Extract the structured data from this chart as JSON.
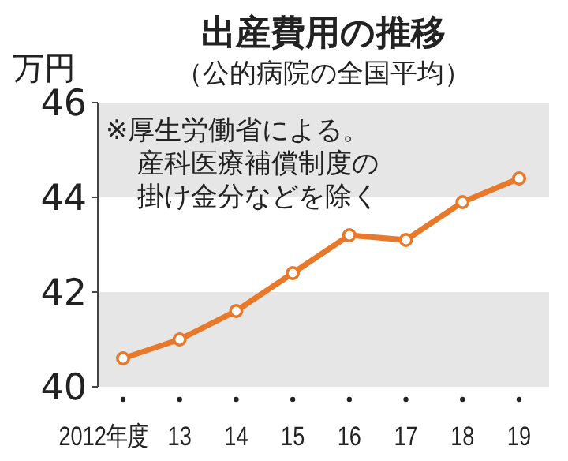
{
  "chart_data": {
    "type": "line",
    "title": "出産費用の推移",
    "subtitle": "（公的病院の全国平均）",
    "ylabel": "万円",
    "categories": [
      "2012年度",
      "13",
      "14",
      "15",
      "16",
      "17",
      "18",
      "19"
    ],
    "series": [
      {
        "color": "#e8782a",
        "values": [
          40.6,
          41.0,
          41.6,
          42.4,
          43.2,
          43.1,
          43.9,
          44.4
        ]
      }
    ],
    "ylim": [
      40,
      46
    ],
    "yticks": [
      40,
      42,
      44,
      46
    ],
    "marker": "circle",
    "grid": false,
    "bands": [
      {
        "axis": "y",
        "from": 40,
        "to": 42,
        "color": "#e6e6e6"
      },
      {
        "axis": "y",
        "from": 44,
        "to": 46,
        "color": "#e6e6e6"
      }
    ],
    "annotations": [
      "※厚生労働省による。",
      "産科医療補償制度の",
      "掛け金分などを除く"
    ]
  }
}
